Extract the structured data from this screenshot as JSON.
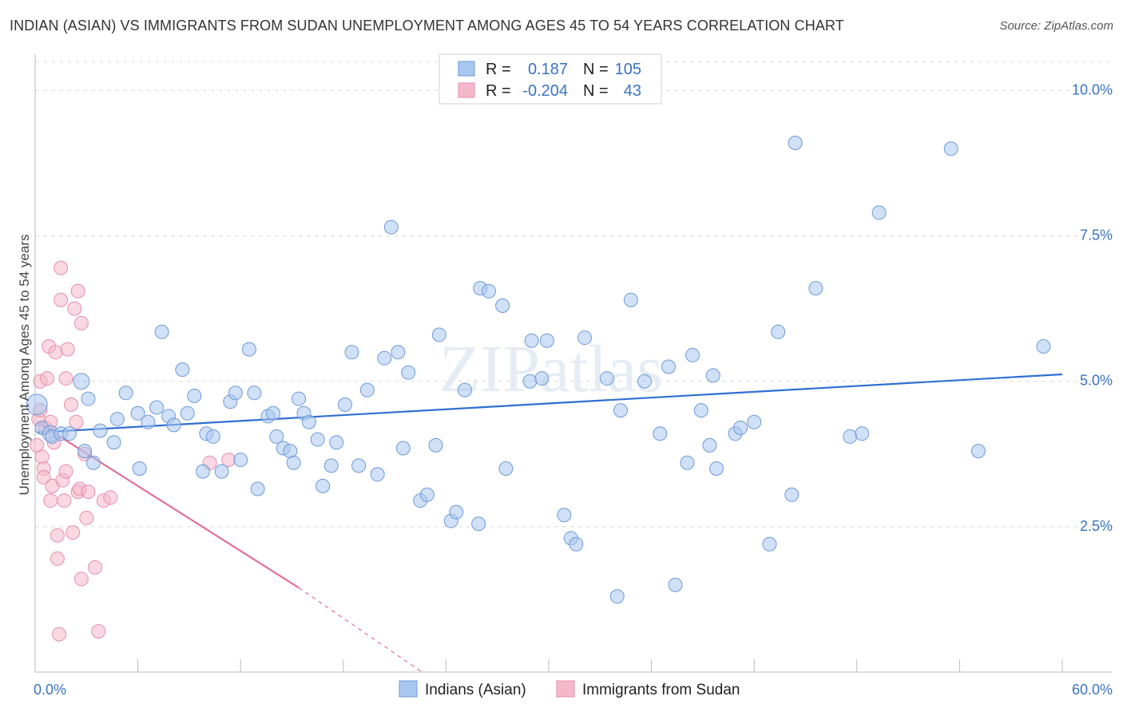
{
  "title": "INDIAN (ASIAN) VS IMMIGRANTS FROM SUDAN UNEMPLOYMENT AMONG AGES 45 TO 54 YEARS CORRELATION CHART",
  "source": "Source: ZipAtlas.com",
  "watermark": "ZIPatlas",
  "colors": {
    "blue": "#3a73c4",
    "blue_fill": "#a9c6ee",
    "blue_line": "#2f6fd0",
    "pink": "#e0709a",
    "pink_fill": "#f5b8cb",
    "grid": "#d9d9d9"
  },
  "legend": {
    "rows": [
      {
        "r_label": "R =",
        "r_value": "0.187",
        "n_label": "N =",
        "n_value": "105"
      },
      {
        "r_label": "R =",
        "r_value": "-0.204",
        "n_label": "N =",
        "n_value": "43"
      }
    ]
  },
  "chart_data": {
    "type": "scatter",
    "title": "INDIAN (ASIAN) VS IMMIGRANTS FROM SUDAN UNEMPLOYMENT AMONG AGES 45 TO 54 YEARS CORRELATION CHART",
    "xlabel": "",
    "ylabel": "Unemployment Among Ages 45 to 54 years",
    "xlim": [
      0,
      60
    ],
    "ylim": [
      0,
      10.5
    ],
    "x_tick_labels": [
      "0.0%",
      "60.0%"
    ],
    "y_ticks": [
      {
        "value": 2.5,
        "label": "2.5%"
      },
      {
        "value": 5.0,
        "label": "5.0%"
      },
      {
        "value": 7.5,
        "label": "7.5%"
      },
      {
        "value": 10.0,
        "label": "10.0%"
      }
    ],
    "legend_position": "top-center",
    "bottom_legend": [
      "Indians (Asian)",
      "Immigrants from Sudan"
    ],
    "series": [
      {
        "name": "Indians (Asian)",
        "color": "#3a73c4",
        "R": 0.187,
        "N": 105,
        "trend": {
          "x_start": 0.1,
          "y_start": 4.12,
          "x_end": 60,
          "y_end": 5.12
        },
        "points": [
          [
            0.1,
            4.6
          ],
          [
            0.4,
            4.2
          ],
          [
            0.9,
            4.1
          ],
          [
            1.0,
            4.05
          ],
          [
            1.5,
            4.1
          ],
          [
            2.0,
            4.1
          ],
          [
            2.7,
            5.0
          ],
          [
            2.9,
            3.8
          ],
          [
            3.1,
            4.7
          ],
          [
            3.4,
            3.6
          ],
          [
            3.8,
            4.15
          ],
          [
            4.6,
            3.95
          ],
          [
            4.8,
            4.35
          ],
          [
            5.3,
            4.8
          ],
          [
            6.0,
            4.45
          ],
          [
            6.1,
            3.5
          ],
          [
            6.6,
            4.3
          ],
          [
            7.1,
            4.55
          ],
          [
            7.4,
            5.85
          ],
          [
            7.8,
            4.4
          ],
          [
            8.1,
            4.25
          ],
          [
            8.6,
            5.2
          ],
          [
            8.9,
            4.45
          ],
          [
            9.3,
            4.75
          ],
          [
            9.8,
            3.45
          ],
          [
            10.0,
            4.1
          ],
          [
            10.4,
            4.05
          ],
          [
            10.9,
            3.45
          ],
          [
            11.4,
            4.65
          ],
          [
            11.7,
            4.8
          ],
          [
            12.0,
            3.65
          ],
          [
            12.5,
            5.55
          ],
          [
            12.8,
            4.8
          ],
          [
            13.0,
            3.15
          ],
          [
            13.6,
            4.4
          ],
          [
            13.9,
            4.45
          ],
          [
            14.1,
            4.05
          ],
          [
            14.5,
            3.85
          ],
          [
            14.9,
            3.8
          ],
          [
            15.1,
            3.6
          ],
          [
            15.4,
            4.7
          ],
          [
            15.7,
            4.45
          ],
          [
            16.0,
            4.3
          ],
          [
            16.5,
            4.0
          ],
          [
            16.8,
            3.2
          ],
          [
            17.3,
            3.55
          ],
          [
            17.6,
            3.95
          ],
          [
            18.1,
            4.6
          ],
          [
            18.5,
            5.5
          ],
          [
            18.9,
            3.55
          ],
          [
            19.4,
            4.85
          ],
          [
            20.0,
            3.4
          ],
          [
            20.4,
            5.4
          ],
          [
            20.8,
            7.65
          ],
          [
            21.2,
            5.5
          ],
          [
            21.5,
            3.85
          ],
          [
            21.8,
            5.15
          ],
          [
            22.5,
            2.95
          ],
          [
            22.9,
            3.05
          ],
          [
            23.4,
            3.9
          ],
          [
            23.6,
            5.8
          ],
          [
            24.3,
            2.6
          ],
          [
            24.6,
            2.75
          ],
          [
            25.1,
            4.85
          ],
          [
            25.9,
            2.55
          ],
          [
            26.0,
            6.6
          ],
          [
            26.5,
            6.55
          ],
          [
            27.3,
            6.3
          ],
          [
            27.5,
            3.5
          ],
          [
            28.9,
            5.0
          ],
          [
            29.0,
            5.7
          ],
          [
            29.6,
            5.05
          ],
          [
            29.9,
            5.7
          ],
          [
            30.9,
            2.7
          ],
          [
            31.3,
            2.3
          ],
          [
            31.6,
            2.2
          ],
          [
            32.1,
            5.75
          ],
          [
            33.4,
            5.05
          ],
          [
            34.0,
            1.3
          ],
          [
            34.2,
            4.5
          ],
          [
            34.8,
            6.4
          ],
          [
            35.6,
            5.0
          ],
          [
            36.5,
            4.1
          ],
          [
            37.0,
            5.25
          ],
          [
            37.4,
            1.5
          ],
          [
            38.1,
            3.6
          ],
          [
            38.4,
            5.45
          ],
          [
            38.9,
            4.5
          ],
          [
            39.4,
            3.9
          ],
          [
            39.6,
            5.1
          ],
          [
            39.8,
            3.5
          ],
          [
            40.9,
            4.1
          ],
          [
            41.2,
            4.2
          ],
          [
            42.0,
            4.3
          ],
          [
            42.9,
            2.2
          ],
          [
            43.4,
            5.85
          ],
          [
            44.2,
            3.05
          ],
          [
            44.4,
            9.1
          ],
          [
            45.6,
            6.6
          ],
          [
            47.6,
            4.05
          ],
          [
            48.3,
            4.1
          ],
          [
            49.3,
            7.9
          ],
          [
            53.5,
            9.0
          ],
          [
            55.1,
            3.8
          ],
          [
            58.9,
            5.6
          ]
        ]
      },
      {
        "name": "Immigrants from Sudan",
        "color": "#e0709a",
        "R": -0.204,
        "N": 43,
        "trend": {
          "x_start": 0.1,
          "y_start": 4.3,
          "x_end": 15.4,
          "y_end": 1.45,
          "dashed_to_x": 22.6,
          "dashed_to_y": 0.0
        },
        "points": [
          [
            0.1,
            3.9
          ],
          [
            0.2,
            4.35
          ],
          [
            0.3,
            4.5
          ],
          [
            0.3,
            5.0
          ],
          [
            0.4,
            3.7
          ],
          [
            0.5,
            3.5
          ],
          [
            0.5,
            3.35
          ],
          [
            0.6,
            4.2
          ],
          [
            0.7,
            5.05
          ],
          [
            0.8,
            5.6
          ],
          [
            0.9,
            2.95
          ],
          [
            0.9,
            4.3
          ],
          [
            1.0,
            3.2
          ],
          [
            1.1,
            3.95
          ],
          [
            1.2,
            5.5
          ],
          [
            1.3,
            2.35
          ],
          [
            1.3,
            1.95
          ],
          [
            1.4,
            0.65
          ],
          [
            1.5,
            6.95
          ],
          [
            1.5,
            6.4
          ],
          [
            1.6,
            3.3
          ],
          [
            1.7,
            2.95
          ],
          [
            1.8,
            5.05
          ],
          [
            1.8,
            3.45
          ],
          [
            1.9,
            5.55
          ],
          [
            2.1,
            4.6
          ],
          [
            2.2,
            2.4
          ],
          [
            2.3,
            6.25
          ],
          [
            2.4,
            4.3
          ],
          [
            2.5,
            6.55
          ],
          [
            2.5,
            3.1
          ],
          [
            2.6,
            3.15
          ],
          [
            2.7,
            6.0
          ],
          [
            2.7,
            1.6
          ],
          [
            2.9,
            3.75
          ],
          [
            3.0,
            2.65
          ],
          [
            3.1,
            3.1
          ],
          [
            3.5,
            1.8
          ],
          [
            3.7,
            0.7
          ],
          [
            4.0,
            2.95
          ],
          [
            4.4,
            3.0
          ],
          [
            10.2,
            3.6
          ],
          [
            11.3,
            3.65
          ]
        ]
      }
    ]
  }
}
